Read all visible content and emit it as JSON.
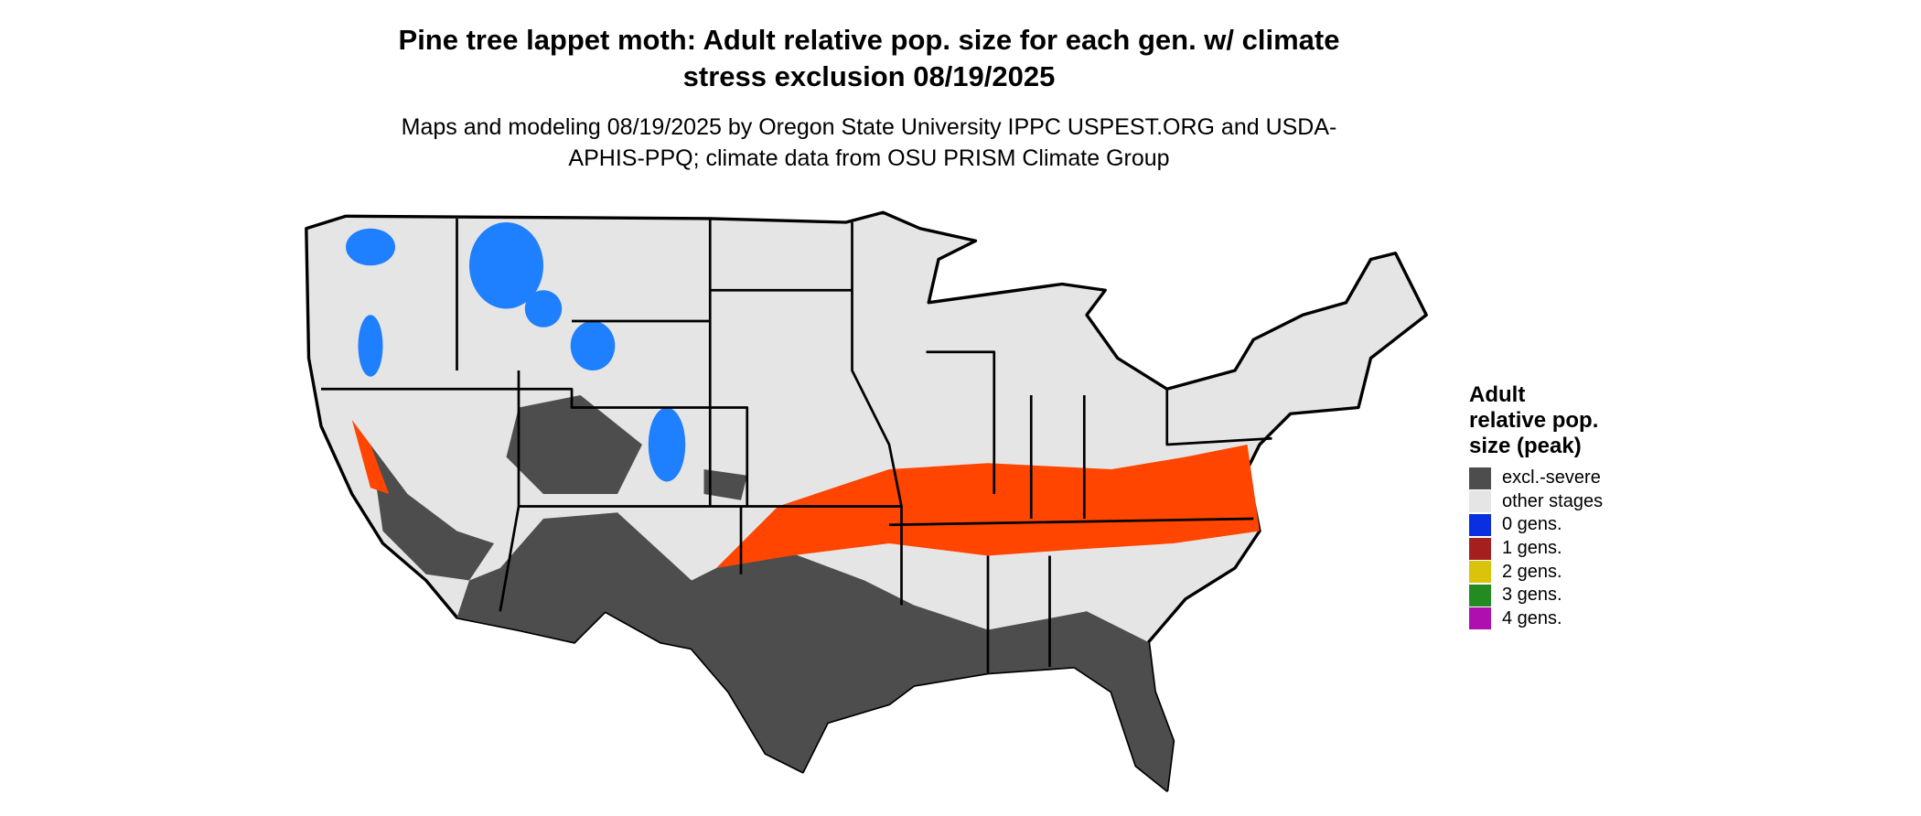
{
  "title": "Pine tree lappet moth: Adult relative pop. size for each gen. w/ climate stress exclusion 08/19/2025",
  "subtitle": "Maps and modeling 08/19/2025 by Oregon State University IPPC USPEST.ORG and USDA-APHIS-PPQ; climate data from OSU PRISM Climate Group",
  "legend": {
    "title": "Adult relative pop. size (peak)",
    "items": [
      {
        "label": "excl.-severe",
        "color": "#4d4d4d"
      },
      {
        "label": "other stages",
        "color": "#e5e5e5"
      },
      {
        "label": "0 gens.",
        "color": "#0a2fe0"
      },
      {
        "label": "1 gens.",
        "color": "#a51f1f"
      },
      {
        "label": "2 gens.",
        "color": "#d9c40b"
      },
      {
        "label": "3 gens.",
        "color": "#238b22"
      },
      {
        "label": "4 gens.",
        "color": "#b00fb0"
      }
    ]
  }
}
